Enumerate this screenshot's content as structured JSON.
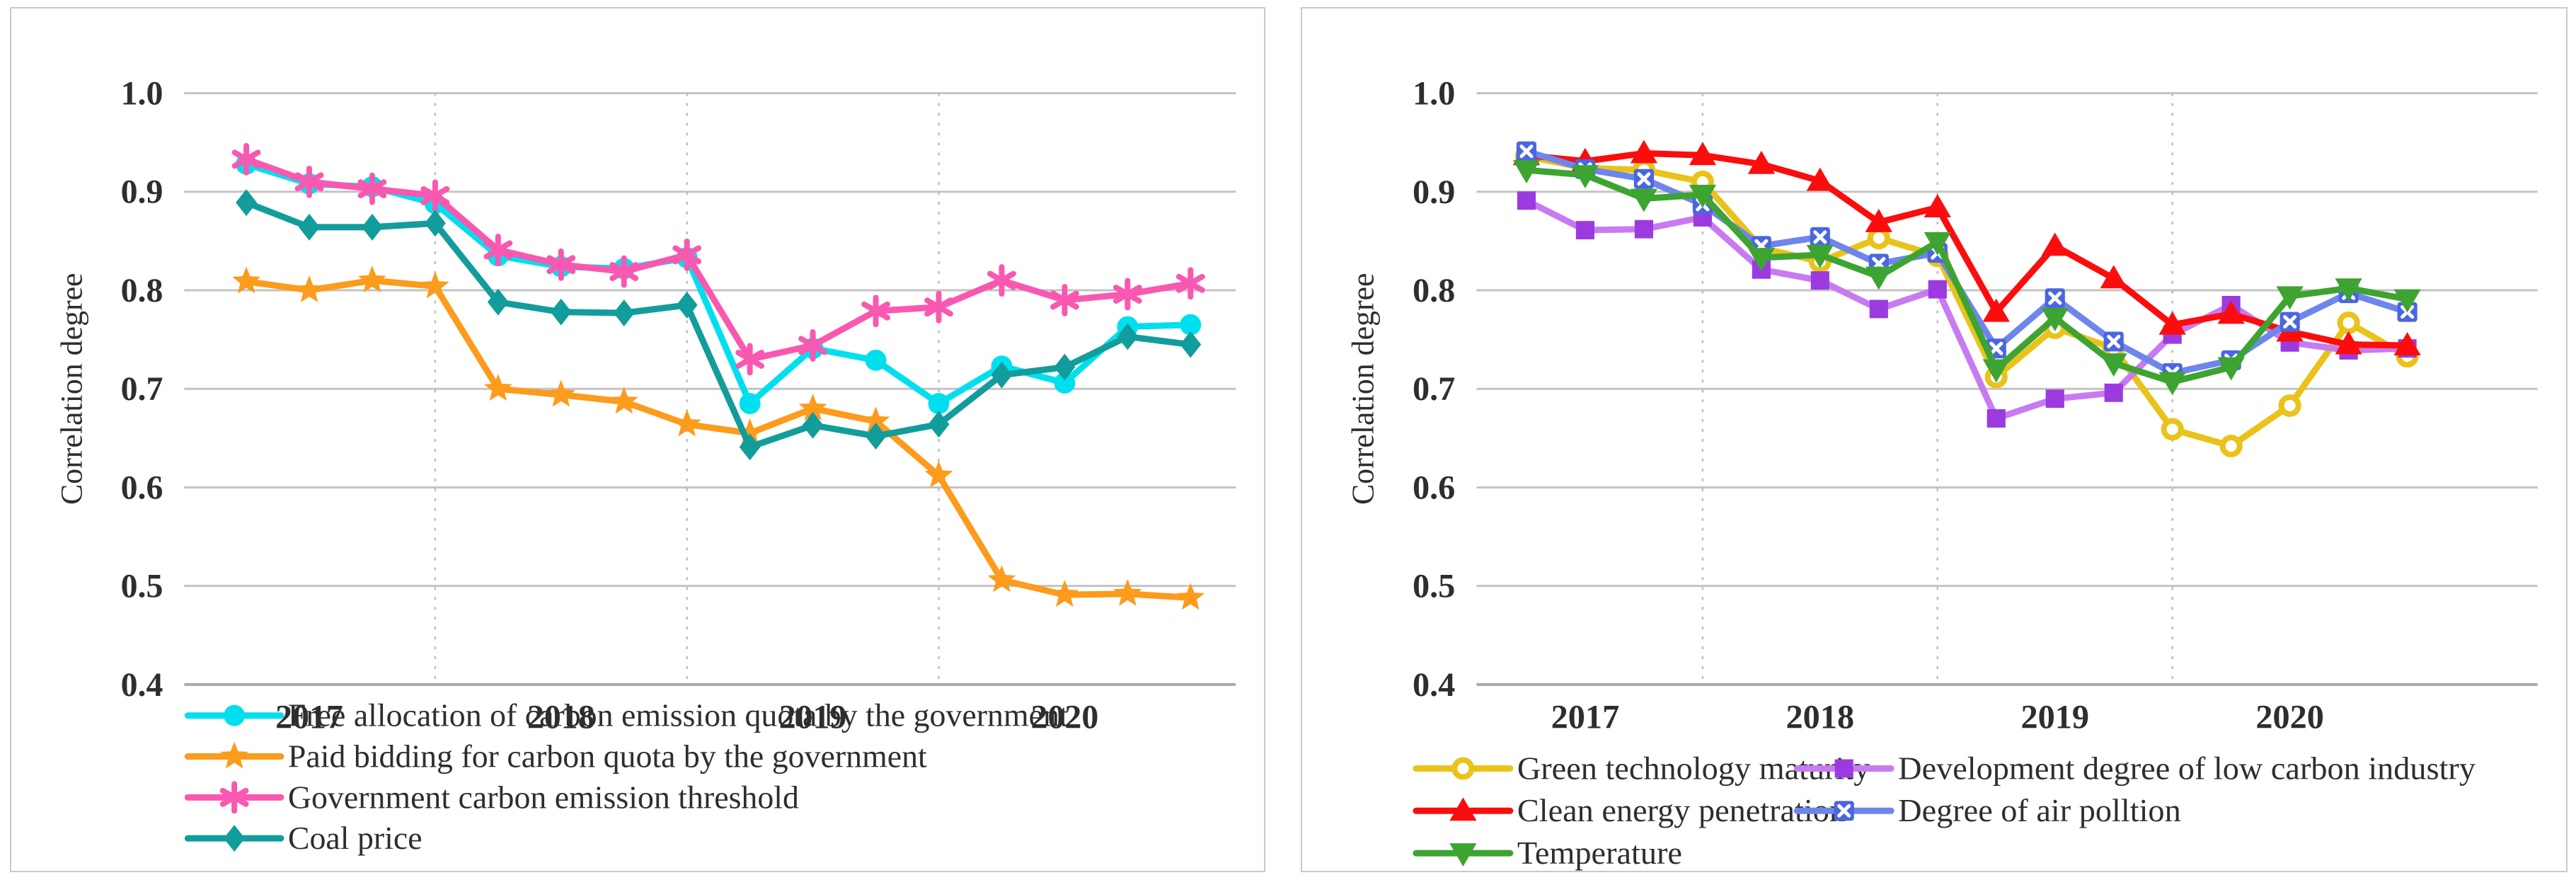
{
  "page": {
    "background": "#ffffff",
    "panel_border_color": "#c9c9c9",
    "grid_color": "#c3c3c3",
    "axis_color": "#a9a9a9",
    "dashed_separator_color": "#bdbdbd",
    "text_color": "#2e2e2e"
  },
  "chart_data": [
    {
      "type": "line",
      "panel": "left",
      "title": "",
      "xlabel": "",
      "ylabel": "Correlation degree",
      "ylim": [
        0.4,
        1.0
      ],
      "yticks": [
        "1.0",
        "0.9",
        "0.8",
        "0.7",
        "0.6",
        "0.5",
        "0.4"
      ],
      "x": [
        "2017Q1",
        "2017Q2",
        "2017Q3",
        "2017Q4",
        "2018Q1",
        "2018Q2",
        "2018Q3",
        "2018Q4",
        "2019Q1",
        "2019Q2",
        "2019Q3",
        "2019Q4",
        "2020Q1",
        "2020Q2",
        "2020Q3",
        "2020Q4"
      ],
      "x_tick_labels": [
        "2017",
        "2018",
        "2019",
        "2020"
      ],
      "year_label_at_indices": [
        1,
        5,
        9,
        13
      ],
      "year_separator_after_indices": [
        3,
        7,
        11
      ],
      "grid": "horizontal solid gridlines; dashed vertical lines at year boundaries",
      "legend_position": "below-left",
      "legend_columns": 1,
      "series": [
        {
          "name": "Free allocation of carbon emission quota by the government",
          "marker": "circle",
          "line_color": "#00dfee",
          "marker_color": "#00dfee",
          "values": [
            0.928,
            0.908,
            0.905,
            0.888,
            0.835,
            0.824,
            0.822,
            0.833,
            0.685,
            0.741,
            0.729,
            0.685,
            0.723,
            0.706,
            0.763,
            0.765
          ]
        },
        {
          "name": "Paid bidding for carbon quota by the government",
          "marker": "star",
          "line_color": "#fc9b1c",
          "marker_color": "#fc9b1c",
          "values": [
            0.809,
            0.8,
            0.81,
            0.804,
            0.7,
            0.694,
            0.687,
            0.664,
            0.655,
            0.68,
            0.667,
            0.612,
            0.506,
            0.491,
            0.492,
            0.488
          ]
        },
        {
          "name": "Government carbon emission threshold",
          "marker": "asterisk",
          "line_color": "#f958b0",
          "marker_color": "#f958b0",
          "values": [
            0.933,
            0.91,
            0.903,
            0.896,
            0.841,
            0.826,
            0.819,
            0.836,
            0.73,
            0.744,
            0.779,
            0.783,
            0.81,
            0.79,
            0.796,
            0.807
          ]
        },
        {
          "name": "Coal price",
          "marker": "diamond",
          "line_color": "#129c9c",
          "marker_color": "#129c9c",
          "values": [
            0.889,
            0.864,
            0.864,
            0.868,
            0.788,
            0.778,
            0.777,
            0.785,
            0.641,
            0.663,
            0.652,
            0.664,
            0.714,
            0.722,
            0.753,
            0.745
          ]
        }
      ]
    },
    {
      "type": "line",
      "panel": "right",
      "title": "",
      "xlabel": "",
      "ylabel": "Correlation degree",
      "ylim": [
        0.4,
        1.0
      ],
      "yticks": [
        "1.0",
        "0.9",
        "0.8",
        "0.7",
        "0.6",
        "0.5",
        "0.4"
      ],
      "x": [
        "2017Q1",
        "2017Q2",
        "2017Q3",
        "2017Q4",
        "2018Q1",
        "2018Q2",
        "2018Q3",
        "2018Q4",
        "2019Q1",
        "2019Q2",
        "2019Q3",
        "2019Q4",
        "2020Q1",
        "2020Q2",
        "2020Q3",
        "2020Q4"
      ],
      "x_tick_labels": [
        "2017",
        "2018",
        "2019",
        "2020"
      ],
      "year_label_at_indices": [
        1,
        5,
        9,
        13
      ],
      "year_separator_after_indices": [
        3,
        7,
        11
      ],
      "grid": "horizontal solid gridlines; dashed vertical lines at year boundaries",
      "legend_position": "below-left",
      "legend_columns": 2,
      "series": [
        {
          "name": "Green technology maturity",
          "marker": "ring",
          "line_color": "#e9c31a",
          "marker_color": "#e9c31a",
          "values": [
            0.936,
            0.924,
            0.922,
            0.91,
            0.843,
            0.829,
            0.853,
            0.835,
            0.712,
            0.762,
            0.741,
            0.659,
            0.642,
            0.683,
            0.767,
            0.733
          ]
        },
        {
          "name": "Development degree of low carbon industry",
          "marker": "square",
          "line_color": "#c87bf0",
          "marker_color": "#9b3bdf",
          "values": [
            0.891,
            0.861,
            0.862,
            0.874,
            0.821,
            0.81,
            0.781,
            0.801,
            0.67,
            0.69,
            0.696,
            0.755,
            0.785,
            0.747,
            0.739,
            0.741
          ]
        },
        {
          "name": "Clean energy penetration",
          "marker": "triangle-up",
          "line_color": "#fb0d0d",
          "marker_color": "#fb0d0d",
          "values": [
            0.937,
            0.931,
            0.939,
            0.937,
            0.928,
            0.911,
            0.869,
            0.884,
            0.778,
            0.845,
            0.812,
            0.765,
            0.776,
            0.758,
            0.745,
            0.744
          ]
        },
        {
          "name": "Degree of air polltion",
          "marker": "xsquare",
          "line_color": "#6e86ec",
          "marker_color": "#4b66e1",
          "values": [
            0.941,
            0.923,
            0.913,
            0.887,
            0.845,
            0.854,
            0.827,
            0.838,
            0.741,
            0.792,
            0.748,
            0.716,
            0.729,
            0.768,
            0.797,
            0.778
          ]
        },
        {
          "name": "Temperature",
          "marker": "triangle-down",
          "line_color": "#3da431",
          "marker_color": "#3da431",
          "values": [
            0.922,
            0.917,
            0.893,
            0.897,
            0.833,
            0.836,
            0.814,
            0.849,
            0.72,
            0.772,
            0.726,
            0.707,
            0.722,
            0.794,
            0.802,
            0.791
          ]
        }
      ]
    }
  ]
}
